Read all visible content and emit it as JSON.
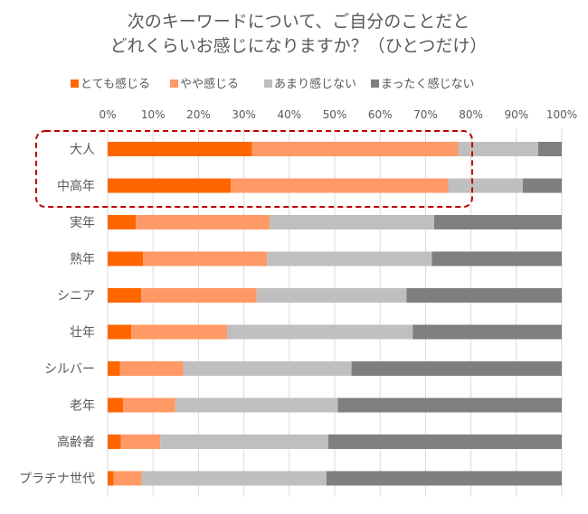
{
  "chart_data": {
    "type": "bar",
    "orientation": "horizontal",
    "stacked": true,
    "title_lines": [
      "次のキーワードについて、ご自分のことだと",
      "どれくらいお感じになりますか？（ひとつだけ）"
    ],
    "legend_position": "top",
    "xlim": [
      0,
      100
    ],
    "x_ticks": [
      "0%",
      "10%",
      "20%",
      "30%",
      "40%",
      "50%",
      "60%",
      "70%",
      "80%",
      "90%",
      "100%"
    ],
    "grid": true,
    "categories": [
      "大人",
      "中高年",
      "実年",
      "熟年",
      "シニア",
      "壮年",
      "シルバー",
      "老年",
      "高齢者",
      "プラチナ世代"
    ],
    "highlighted_categories": [
      "大人",
      "中高年"
    ],
    "highlight_color": "#C00000",
    "series": [
      {
        "name": "とても感じる",
        "color": "#FF6600",
        "values": [
          31.8,
          27.1,
          6.2,
          7.8,
          7.4,
          5.2,
          2.7,
          3.4,
          2.9,
          1.3
        ]
      },
      {
        "name": "やや感じる",
        "color": "#FF9966",
        "values": [
          45.4,
          47.9,
          29.5,
          27.3,
          25.4,
          21.1,
          14.0,
          11.5,
          8.7,
          6.2
        ]
      },
      {
        "name": "あまり感じない",
        "color": "#BFBFBF",
        "values": [
          17.6,
          16.4,
          36.2,
          36.3,
          33.0,
          40.9,
          37.0,
          35.8,
          37.0,
          40.7
        ]
      },
      {
        "name": "まったく感じない",
        "color": "#7F7F7F",
        "values": [
          5.2,
          8.6,
          28.1,
          28.6,
          34.2,
          32.8,
          46.3,
          49.3,
          51.4,
          51.8
        ]
      }
    ]
  }
}
